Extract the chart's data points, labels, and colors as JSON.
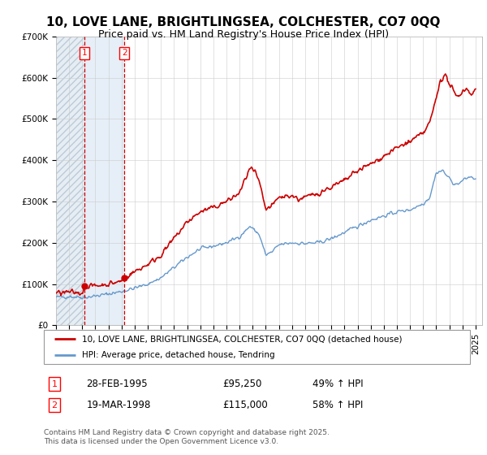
{
  "title": "10, LOVE LANE, BRIGHTLINGSEA, COLCHESTER, CO7 0QQ",
  "subtitle": "Price paid vs. HM Land Registry's House Price Index (HPI)",
  "ylim": [
    0,
    700000
  ],
  "xlim_start": 1993.0,
  "xlim_end": 2025.5,
  "hpi_color": "#6699cc",
  "price_color": "#cc0000",
  "legend_label_price": "10, LOVE LANE, BRIGHTLINGSEA, COLCHESTER, CO7 0QQ (detached house)",
  "legend_label_hpi": "HPI: Average price, detached house, Tendring",
  "sale1_date": 1995.15,
  "sale1_price": 95250,
  "sale2_date": 1998.21,
  "sale2_price": 115000,
  "footer": "Contains HM Land Registry data © Crown copyright and database right 2025.\nThis data is licensed under the Open Government Licence v3.0.",
  "bg_hatch_color": "#e0e8f0",
  "grid_color": "#cccccc",
  "title_fontsize": 11,
  "subtitle_fontsize": 9,
  "tick_fontsize": 7.5
}
